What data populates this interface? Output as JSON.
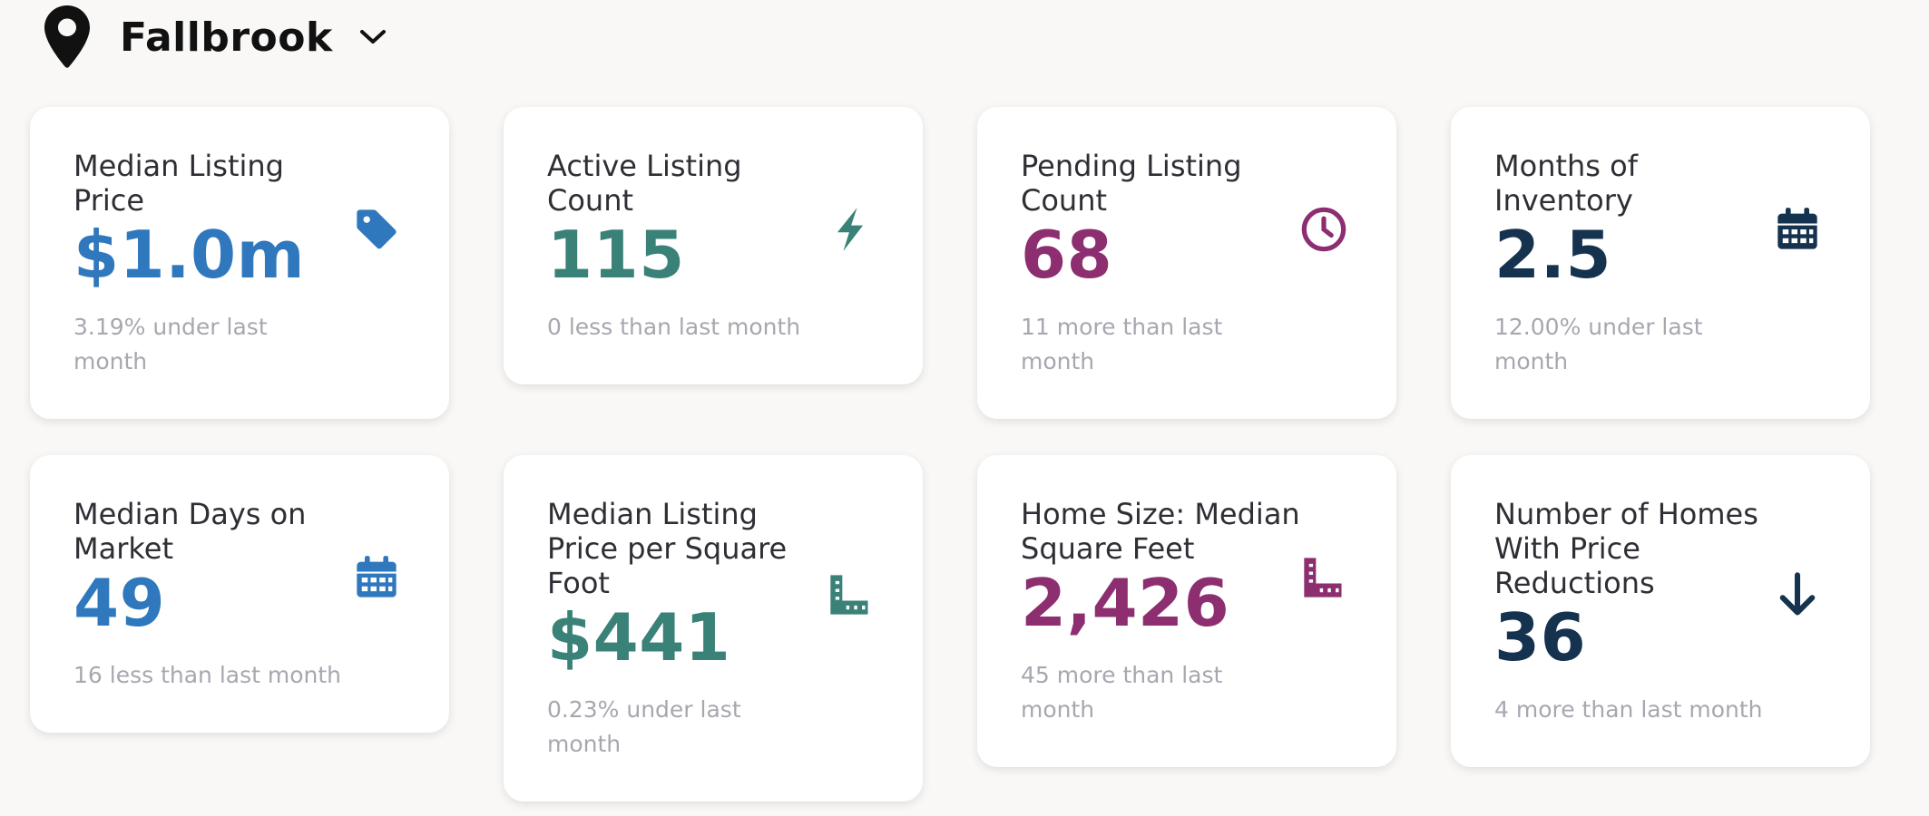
{
  "header": {
    "location": "Fallbrook",
    "location_icon": "map-pin-icon",
    "dropdown_icon": "chevron-down-icon"
  },
  "colors": {
    "blue": "#2f78bd",
    "teal": "#3a8178",
    "magenta": "#8c2e6f",
    "navy": "#15324f"
  },
  "cards": [
    {
      "title": "Median Listing Price",
      "value": "$1.0m",
      "sub": "3.19% under last month",
      "icon": "price-tag-icon"
    },
    {
      "title": "Active Listing Count",
      "value": "115",
      "sub": "0 less than last month",
      "icon": "lightning-bolt-icon"
    },
    {
      "title": "Pending Listing Count",
      "value": "68",
      "sub": "11 more than last month",
      "icon": "clock-icon"
    },
    {
      "title": "Months of Inventory",
      "value": "2.5",
      "sub": "12.00% under last month",
      "icon": "calendar-icon"
    },
    {
      "title": "Median Days on Market",
      "value": "49",
      "sub": "16 less than last month",
      "icon": "calendar-icon"
    },
    {
      "title": "Median Listing Price per Square Foot",
      "value": "$441",
      "sub": "0.23% under last month",
      "icon": "ruler-icon"
    },
    {
      "title": "Home Size: Median Square Feet",
      "value": "2,426",
      "sub": "45 more than last month",
      "icon": "ruler-icon"
    },
    {
      "title": "Number of Homes With Price Reductions",
      "value": "36",
      "sub": "4 more than last month",
      "icon": "arrow-down-icon"
    }
  ]
}
